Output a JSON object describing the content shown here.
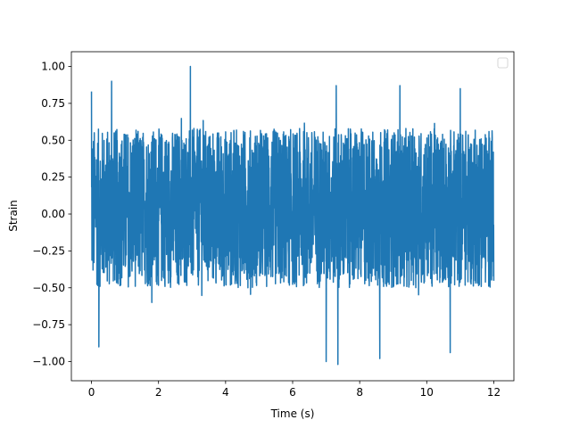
{
  "chart_data": {
    "type": "line",
    "title": "",
    "xlabel": "Time (s)",
    "ylabel": "Strain",
    "xlim": [
      -0.6,
      12.6
    ],
    "ylim": [
      -1.13,
      1.1
    ],
    "x_ticks": [
      0,
      2,
      4,
      6,
      8,
      10,
      12
    ],
    "x_tick_labels": [
      "0",
      "2",
      "4",
      "6",
      "8",
      "10",
      "12"
    ],
    "y_ticks": [
      1.0,
      0.75,
      0.5,
      0.25,
      0.0,
      -0.25,
      -0.5,
      -0.75,
      -1.0
    ],
    "y_tick_labels": [
      "1.00",
      "0.75",
      "0.50",
      "0.25",
      "0.00",
      "−0.25",
      "−0.50",
      "−0.75",
      "−1.00"
    ],
    "grid": false,
    "legend": {
      "placement": "top-right",
      "entries": []
    },
    "series": [
      {
        "color": "#1f77b4",
        "x_range": [
          0,
          12
        ],
        "y_range": [
          -1.02,
          1.0
        ],
        "typical_band": [
          -0.5,
          0.58
        ],
        "peaks": [
          {
            "x": 0.0,
            "y": 0.83
          },
          {
            "x": 0.6,
            "y": 0.9
          },
          {
            "x": 2.95,
            "y": 1.0
          },
          {
            "x": 7.3,
            "y": 0.87
          },
          {
            "x": 9.2,
            "y": 0.87
          },
          {
            "x": 11.0,
            "y": 0.85
          },
          {
            "x": 0.22,
            "y": -0.9
          },
          {
            "x": 7.0,
            "y": -1.0
          },
          {
            "x": 7.35,
            "y": -1.02
          },
          {
            "x": 10.7,
            "y": -0.94
          },
          {
            "x": 8.6,
            "y": -0.98
          }
        ]
      }
    ]
  }
}
